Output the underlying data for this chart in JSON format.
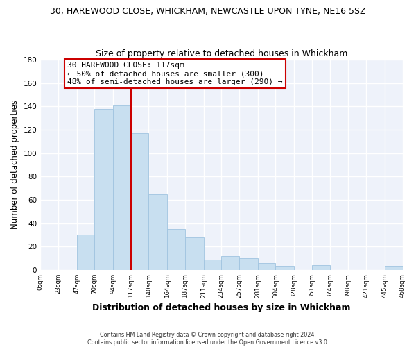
{
  "title": "30, HAREWOOD CLOSE, WHICKHAM, NEWCASTLE UPON TYNE, NE16 5SZ",
  "subtitle": "Size of property relative to detached houses in Whickham",
  "xlabel": "Distribution of detached houses by size in Whickham",
  "ylabel": "Number of detached properties",
  "bar_edges": [
    0,
    23,
    47,
    70,
    94,
    117,
    140,
    164,
    187,
    211,
    234,
    257,
    281,
    304,
    328,
    351,
    374,
    398,
    421,
    445,
    468
  ],
  "bar_heights": [
    0,
    0,
    30,
    138,
    141,
    117,
    65,
    35,
    28,
    9,
    12,
    10,
    6,
    3,
    0,
    4,
    0,
    0,
    0,
    3
  ],
  "bar_color": "#c8dff0",
  "bar_edgecolor": "#a0c4e0",
  "vline_x": 117,
  "vline_color": "#cc0000",
  "annotation_title": "30 HAREWOOD CLOSE: 117sqm",
  "annotation_line1": "← 50% of detached houses are smaller (300)",
  "annotation_line2": "48% of semi-detached houses are larger (290) →",
  "annotation_box_facecolor": "#ffffff",
  "annotation_box_edgecolor": "#cc0000",
  "xlim": [
    0,
    468
  ],
  "ylim": [
    0,
    180
  ],
  "yticks": [
    0,
    20,
    40,
    60,
    80,
    100,
    120,
    140,
    160,
    180
  ],
  "xtick_labels": [
    "0sqm",
    "23sqm",
    "47sqm",
    "70sqm",
    "94sqm",
    "117sqm",
    "140sqm",
    "164sqm",
    "187sqm",
    "211sqm",
    "234sqm",
    "257sqm",
    "281sqm",
    "304sqm",
    "328sqm",
    "351sqm",
    "374sqm",
    "398sqm",
    "421sqm",
    "445sqm",
    "468sqm"
  ],
  "xtick_positions": [
    0,
    23,
    47,
    70,
    94,
    117,
    140,
    164,
    187,
    211,
    234,
    257,
    281,
    304,
    328,
    351,
    374,
    398,
    421,
    445,
    468
  ],
  "footer_line1": "Contains HM Land Registry data © Crown copyright and database right 2024.",
  "footer_line2": "Contains public sector information licensed under the Open Government Licence v3.0.",
  "fig_background": "#ffffff",
  "plot_background": "#eef2fa",
  "grid_color": "#ffffff"
}
